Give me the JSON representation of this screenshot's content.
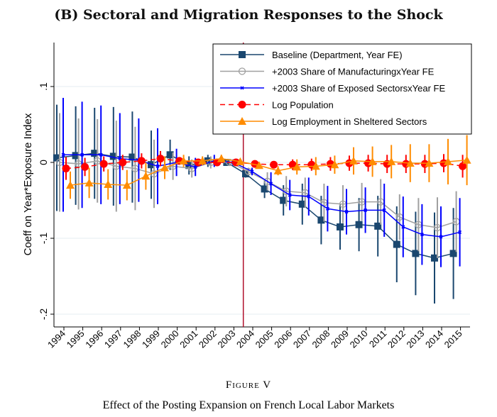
{
  "figure_label": "Figure V",
  "caption": "Effect of the Posting Expansion on French Local Labor Markets",
  "chart_data": {
    "type": "line",
    "title": "(B)  Sectoral and Migration Responses to the Shock",
    "xlabel": "",
    "ylabel": "Coeff on Year*Exposure Index",
    "ylim": [
      -0.217,
      0.158
    ],
    "yticks": [
      0.1,
      0,
      -0.1,
      -0.2
    ],
    "ytick_labels": [
      ".1",
      "0",
      "-.1",
      "-.2"
    ],
    "x": [
      1994,
      1995,
      1996,
      1997,
      1998,
      1999,
      2000,
      2001,
      2002,
      2003,
      2004,
      2005,
      2006,
      2007,
      2008,
      2009,
      2010,
      2011,
      2012,
      2013,
      2014,
      2015
    ],
    "xtick_labels": [
      "1994",
      "1995",
      "1996",
      "1997",
      "1998",
      "1999",
      "2000",
      "2001",
      "2002",
      "2003",
      "2004",
      "2005",
      "2006",
      "2007",
      "2008",
      "2009",
      "2010",
      "2011",
      "2012",
      "2013",
      "2014",
      "2015"
    ],
    "vertical_line_at": 2003.5,
    "legend_position": "top-right",
    "series": [
      {
        "name": "Baseline (Department, Year FE)",
        "color": "#1a476f",
        "marker": "square",
        "values": [
          0.006,
          0.009,
          0.012,
          0.008,
          0.007,
          -0.003,
          0.01,
          -0.004,
          0.002,
          0.0,
          -0.015,
          -0.035,
          -0.05,
          -0.055,
          -0.076,
          -0.085,
          -0.082,
          -0.084,
          -0.108,
          -0.12,
          -0.126,
          -0.12
        ],
        "ci_half": [
          0.07,
          0.065,
          0.06,
          0.065,
          0.06,
          0.045,
          0.02,
          0.012,
          0.008,
          0.004,
          0.005,
          0.012,
          0.02,
          0.027,
          0.032,
          0.03,
          0.035,
          0.04,
          0.05,
          0.055,
          0.06,
          0.06
        ]
      },
      {
        "name": "+2003 Share of ManufacturingxYear FE",
        "color": "#a0a0a0",
        "marker": "hollow-circle",
        "values": [
          0.0,
          -0.002,
          0.002,
          -0.005,
          -0.008,
          -0.015,
          -0.005,
          -0.008,
          0.0,
          0.0,
          -0.012,
          -0.025,
          -0.038,
          -0.04,
          -0.053,
          -0.055,
          -0.052,
          -0.052,
          -0.072,
          -0.082,
          -0.086,
          -0.078
        ],
        "ci_half": [
          0.065,
          0.06,
          0.055,
          0.06,
          0.055,
          0.045,
          0.018,
          0.012,
          0.008,
          0.004,
          0.005,
          0.012,
          0.02,
          0.02,
          0.025,
          0.025,
          0.025,
          0.03,
          0.03,
          0.035,
          0.04,
          0.04
        ]
      },
      {
        "name": "+2003 Share of Exposed SectorsxYear FE",
        "color": "#0000ff",
        "marker": "x",
        "values": [
          0.01,
          0.01,
          0.01,
          0.005,
          0.003,
          -0.005,
          0.0,
          -0.006,
          0.002,
          0.0,
          -0.012,
          -0.028,
          -0.043,
          -0.045,
          -0.061,
          -0.065,
          -0.063,
          -0.063,
          -0.085,
          -0.095,
          -0.098,
          -0.092
        ],
        "ci_half": [
          0.075,
          0.07,
          0.065,
          0.06,
          0.055,
          0.05,
          0.018,
          0.012,
          0.008,
          0.004,
          0.005,
          0.015,
          0.02,
          0.025,
          0.03,
          0.03,
          0.03,
          0.035,
          0.04,
          0.04,
          0.04,
          0.045
        ]
      },
      {
        "name": "Log Population",
        "color": "#ff0000",
        "marker": "filled-circle",
        "dashed": true,
        "values": [
          -0.008,
          -0.006,
          -0.002,
          0.0,
          0.002,
          0.005,
          0.002,
          0.0,
          0.0,
          0.0,
          -0.002,
          -0.003,
          -0.003,
          -0.003,
          -0.002,
          -0.001,
          -0.001,
          -0.002,
          -0.002,
          -0.002,
          -0.001,
          -0.005
        ],
        "ci_half": [
          0.015,
          0.012,
          0.01,
          0.01,
          0.01,
          0.01,
          0.005,
          0.004,
          0.003,
          0.002,
          0.002,
          0.004,
          0.007,
          0.008,
          0.009,
          0.01,
          0.011,
          0.012,
          0.012,
          0.012,
          0.012,
          0.015
        ]
      },
      {
        "name": "Log Employment in Sheltered Sectors",
        "color": "#ff8c00",
        "marker": "triangle",
        "values": [
          -0.03,
          -0.027,
          -0.029,
          -0.03,
          -0.018,
          -0.007,
          0.002,
          0.002,
          0.005,
          0.001,
          -0.004,
          -0.011,
          -0.006,
          -0.005,
          -0.003,
          0.002,
          0.001,
          0.001,
          -0.001,
          -0.001,
          0.001,
          0.003
        ],
        "ci_half": [
          0.018,
          0.02,
          0.02,
          0.02,
          0.018,
          0.015,
          0.008,
          0.006,
          0.005,
          0.003,
          0.004,
          0.006,
          0.01,
          0.012,
          0.012,
          0.018,
          0.02,
          0.022,
          0.025,
          0.025,
          0.03,
          0.033
        ]
      }
    ]
  }
}
